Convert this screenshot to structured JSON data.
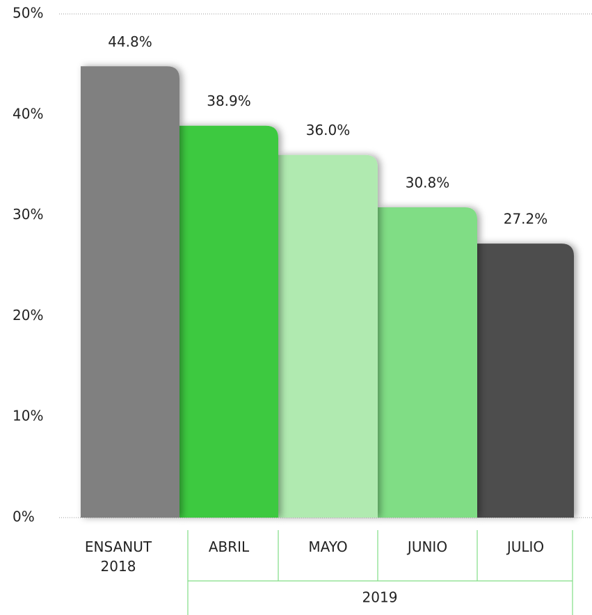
{
  "chart_data": {
    "type": "bar",
    "categories": [
      "ENSANUT\n2018",
      "ABRIL",
      "MAYO",
      "JUNIO",
      "JULIO"
    ],
    "values": [
      44.8,
      38.9,
      36.0,
      30.8,
      27.2
    ],
    "value_labels": [
      "44.8%",
      "38.9%",
      "36.0%",
      "30.8%",
      "27.2%"
    ],
    "colors": [
      "#808080",
      "#3cc940",
      "#b0eab0",
      "#80dd85",
      "#4d4d4d"
    ],
    "group_label": "2019",
    "ylim": [
      0,
      50
    ],
    "yticks": [
      {
        "value": 0,
        "label": "0%"
      },
      {
        "value": 10,
        "label": "10%"
      },
      {
        "value": 20,
        "label": "20%"
      },
      {
        "value": 30,
        "label": "30%"
      },
      {
        "value": 40,
        "label": "40%"
      },
      {
        "value": 50,
        "label": "50%"
      }
    ]
  }
}
